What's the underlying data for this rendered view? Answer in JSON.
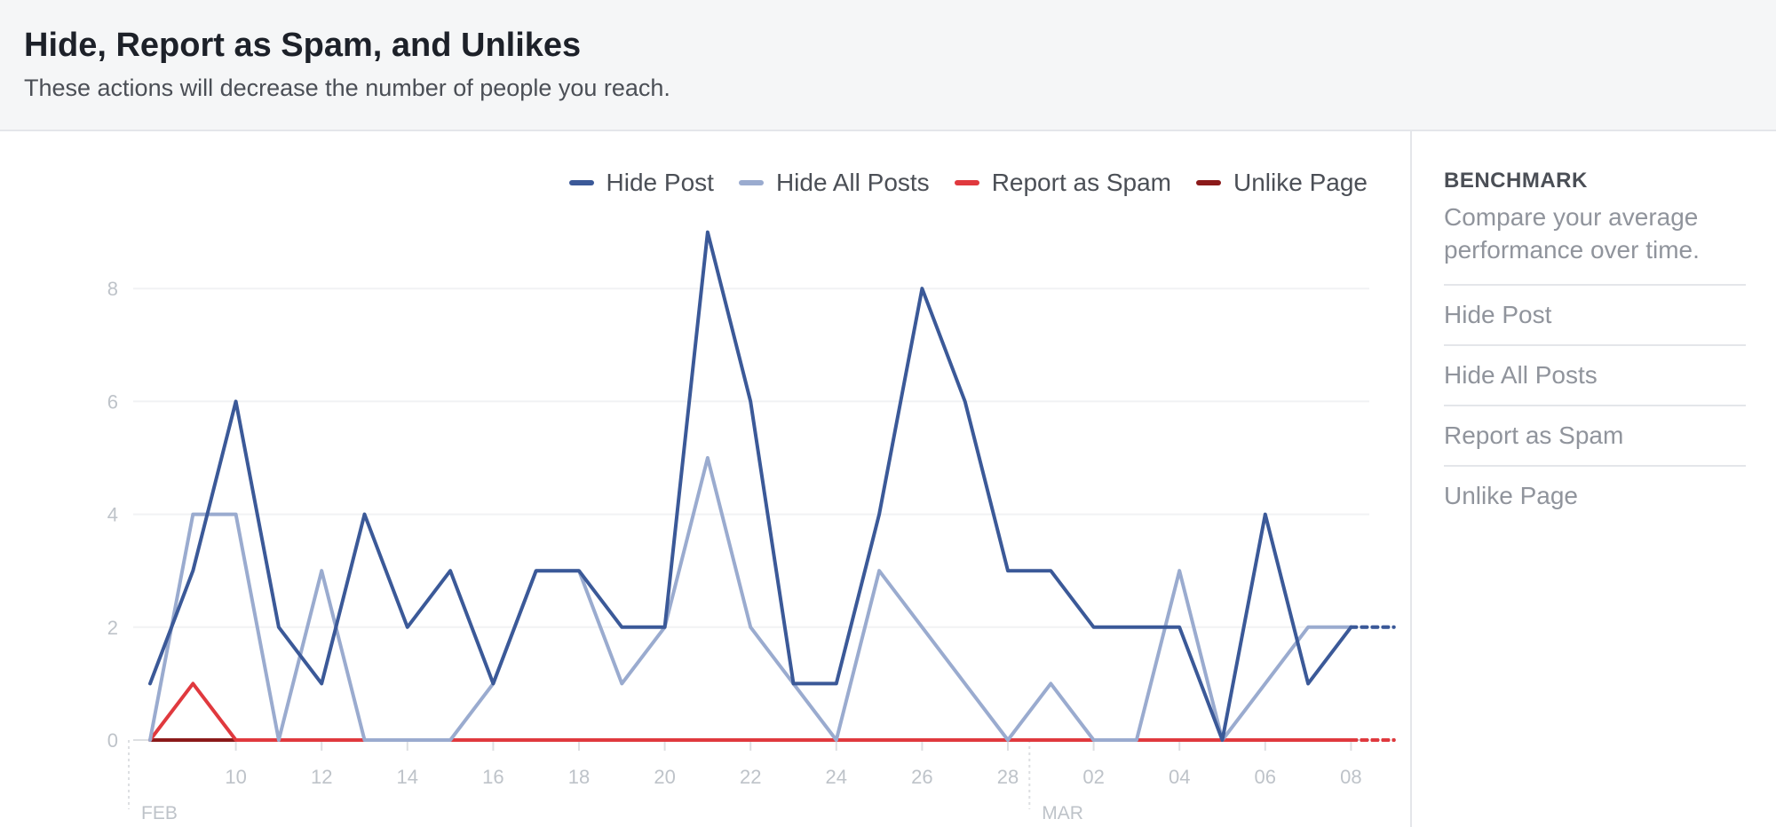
{
  "header": {
    "title": "Hide, Report as Spam, and Unlikes",
    "subtitle": "These actions will decrease the number of people you reach."
  },
  "sidebar": {
    "title": "BENCHMARK",
    "description": "Compare your average performance over time.",
    "items": [
      "Hide Post",
      "Hide All Posts",
      "Report as Spam",
      "Unlike Page"
    ]
  },
  "colors": {
    "hide_post": "#3b5998",
    "hide_all_posts": "#9aabcf",
    "report_as_spam": "#e0393e",
    "unlike_page": "#8b1a1a"
  },
  "chart_data": {
    "type": "line",
    "legend_position": "top-right",
    "grid": true,
    "ylim": [
      0,
      9
    ],
    "yticks": [
      0,
      2,
      4,
      6,
      8
    ],
    "x": [
      "2018-02-08",
      "2018-02-09",
      "2018-02-10",
      "2018-02-11",
      "2018-02-12",
      "2018-02-13",
      "2018-02-14",
      "2018-02-15",
      "2018-02-16",
      "2018-02-17",
      "2018-02-18",
      "2018-02-19",
      "2018-02-20",
      "2018-02-21",
      "2018-02-22",
      "2018-02-23",
      "2018-02-24",
      "2018-02-25",
      "2018-02-26",
      "2018-02-27",
      "2018-02-28",
      "2018-03-01",
      "2018-03-02",
      "2018-03-03",
      "2018-03-04",
      "2018-03-05",
      "2018-03-06",
      "2018-03-07",
      "2018-03-08",
      "2018-03-09"
    ],
    "xticks": [
      {
        "label": "10",
        "index": 2
      },
      {
        "label": "12",
        "index": 4
      },
      {
        "label": "14",
        "index": 6
      },
      {
        "label": "16",
        "index": 8
      },
      {
        "label": "18",
        "index": 10
      },
      {
        "label": "20",
        "index": 12
      },
      {
        "label": "22",
        "index": 14
      },
      {
        "label": "24",
        "index": 16
      },
      {
        "label": "26",
        "index": 18
      },
      {
        "label": "28",
        "index": 20
      },
      {
        "label": "02",
        "index": 22
      },
      {
        "label": "04",
        "index": 24
      },
      {
        "label": "06",
        "index": 26
      },
      {
        "label": "08",
        "index": 28
      }
    ],
    "month_labels": [
      {
        "label": "FEB",
        "index": 0
      },
      {
        "label": "MAR",
        "index": 21
      }
    ],
    "series": [
      {
        "name": "Hide Post",
        "color_key": "hide_post",
        "values": [
          1,
          3,
          6,
          2,
          1,
          4,
          2,
          3,
          1,
          3,
          3,
          2,
          2,
          9,
          6,
          1,
          1,
          4,
          8,
          6,
          3,
          3,
          2,
          2,
          2,
          0,
          4,
          1,
          2,
          2
        ]
      },
      {
        "name": "Hide All Posts",
        "color_key": "hide_all_posts",
        "values": [
          0,
          4,
          4,
          0,
          3,
          0,
          0,
          0,
          1,
          3,
          3,
          1,
          2,
          5,
          2,
          1,
          0,
          3,
          2,
          1,
          0,
          1,
          0,
          0,
          3,
          0,
          1,
          2,
          2,
          2
        ]
      },
      {
        "name": "Report as Spam",
        "color_key": "report_as_spam",
        "values": [
          0,
          1,
          0,
          0,
          0,
          0,
          0,
          0,
          0,
          0,
          0,
          0,
          0,
          0,
          0,
          0,
          0,
          0,
          0,
          0,
          0,
          0,
          0,
          0,
          0,
          0,
          0,
          0,
          0,
          0
        ]
      },
      {
        "name": "Unlike Page",
        "color_key": "unlike_page",
        "values": [
          0,
          0,
          0,
          0,
          0,
          0,
          0,
          0,
          0,
          0,
          0,
          0,
          0,
          0,
          0,
          0,
          0,
          0,
          0,
          0,
          0,
          0,
          0,
          0,
          0,
          0,
          0,
          0,
          0,
          0
        ]
      }
    ]
  }
}
